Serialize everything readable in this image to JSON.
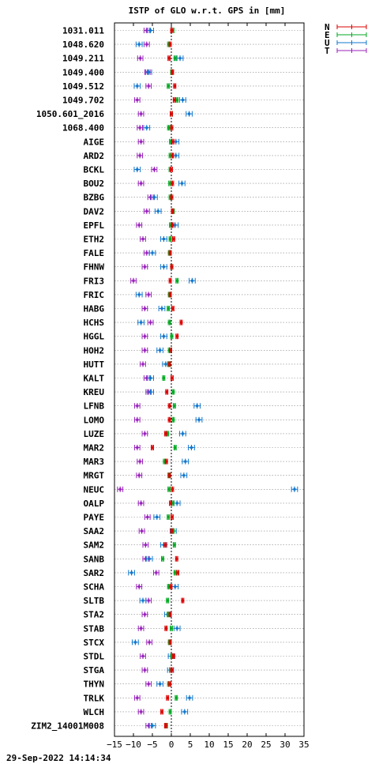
{
  "chart_data": {
    "type": "scatter",
    "title": "ISTP of GLO w.r.t. GPS in [mm]",
    "timestamp": "29-Sep-2022 14:14:34",
    "xlim": [
      -15,
      35
    ],
    "xticks": [
      -15,
      -10,
      -5,
      0,
      5,
      10,
      15,
      20,
      25,
      30,
      35
    ],
    "grid": true,
    "legend_position": "top-right, outside plot",
    "series_colors": {
      "N": "#dd0000",
      "E": "#00aa22",
      "U": "#1177cc",
      "T": "#9922bb"
    },
    "series": [
      {
        "name": "N",
        "error": 0.3
      },
      {
        "name": "E",
        "error": 0.3
      },
      {
        "name": "U",
        "error": 0.8
      },
      {
        "name": "T",
        "error": 0.7
      }
    ],
    "stations": [
      {
        "name": "1031.011",
        "N": 0.1,
        "E": 0.4,
        "U": -5.5,
        "T": -6.5
      },
      {
        "name": "1048.620",
        "N": -0.3,
        "E": -0.7,
        "U": -8.5,
        "T": -6.5
      },
      {
        "name": "1049.211",
        "N": -0.6,
        "E": 1.0,
        "U": 2.3,
        "T": -8.2
      },
      {
        "name": "1049.400",
        "N": 0.3,
        "E": 0.1,
        "U": -6.0,
        "T": -6.3
      },
      {
        "name": "1049.512",
        "N": 0.9,
        "E": -0.8,
        "U": -9.0,
        "T": -6.0
      },
      {
        "name": "1049.702",
        "N": 0.8,
        "E": 1.5,
        "U": 3.0,
        "T": -9.0
      },
      {
        "name": "1050.601_2016",
        "N": 0.0,
        "E": 0.0,
        "U": 4.7,
        "T": -8.0
      },
      {
        "name": "1068.400",
        "N": 0.1,
        "E": -0.7,
        "U": -6.5,
        "T": -8.3
      },
      {
        "name": "AIGE",
        "N": 0.4,
        "E": -0.2,
        "U": 1.2,
        "T": -8.0
      },
      {
        "name": "ARD2",
        "N": 0.3,
        "E": -0.3,
        "U": 1.2,
        "T": -8.3
      },
      {
        "name": "BCKL",
        "N": 0.0,
        "E": -0.3,
        "U": -9.0,
        "T": -4.5
      },
      {
        "name": "BOU2",
        "N": 0.3,
        "E": -0.4,
        "U": 2.8,
        "T": -8.0
      },
      {
        "name": "BZBG",
        "N": 0.1,
        "E": -0.3,
        "U": -4.5,
        "T": -5.5
      },
      {
        "name": "DAV2",
        "N": 0.3,
        "E": 0.5,
        "U": -3.5,
        "T": -6.5
      },
      {
        "name": "EPFL",
        "N": 0.3,
        "E": -0.2,
        "U": 1.0,
        "T": -8.5
      },
      {
        "name": "ETH2",
        "N": 0.6,
        "E": -0.3,
        "U": -2.0,
        "T": -7.5
      },
      {
        "name": "FALE",
        "N": -0.3,
        "E": -0.5,
        "U": -5.0,
        "T": -6.5
      },
      {
        "name": "FHNW",
        "N": 0.1,
        "E": 0.1,
        "U": -2.0,
        "T": -7.0
      },
      {
        "name": "FRI3",
        "N": -0.3,
        "E": 1.5,
        "U": 5.5,
        "T": -10.0
      },
      {
        "name": "FRIC",
        "N": -0.3,
        "E": -0.5,
        "U": -8.5,
        "T": -6.0
      },
      {
        "name": "HABG",
        "N": 0.4,
        "E": -0.8,
        "U": -2.5,
        "T": -7.0
      },
      {
        "name": "HCHS",
        "N": 2.6,
        "E": -0.5,
        "U": -8.0,
        "T": -5.5
      },
      {
        "name": "HGGL",
        "N": 1.5,
        "E": 0.1,
        "U": -2.0,
        "T": -7.0
      },
      {
        "name": "HOH2",
        "N": -0.2,
        "E": -0.5,
        "U": -3.0,
        "T": -7.0
      },
      {
        "name": "HUTT",
        "N": -0.5,
        "E": -0.7,
        "U": -1.5,
        "T": -7.5
      },
      {
        "name": "KALT",
        "N": 0.2,
        "E": -2.0,
        "U": -5.5,
        "T": -6.5
      },
      {
        "name": "KREU",
        "N": -1.2,
        "E": 0.5,
        "U": -5.5,
        "T": -6.0
      },
      {
        "name": "LFNB",
        "N": -0.5,
        "E": 0.8,
        "U": 6.8,
        "T": -9.0
      },
      {
        "name": "LOMO",
        "N": -0.5,
        "E": 0.5,
        "U": 7.3,
        "T": -9.0
      },
      {
        "name": "LUZE",
        "N": -1.5,
        "E": -1.0,
        "U": 3.0,
        "T": -7.0
      },
      {
        "name": "MAR2",
        "N": -5.0,
        "E": 1.0,
        "U": 5.3,
        "T": -9.0
      },
      {
        "name": "MAR3",
        "N": -1.3,
        "E": -1.8,
        "U": 3.7,
        "T": -8.3
      },
      {
        "name": "MRGT",
        "N": -0.5,
        "E": -0.6,
        "U": 3.3,
        "T": -8.5
      },
      {
        "name": "NEUC",
        "N": 0.3,
        "E": -0.6,
        "U": 32.5,
        "T": -13.5
      },
      {
        "name": "OALP",
        "N": -0.2,
        "E": 0.4,
        "U": 1.5,
        "T": -8.0
      },
      {
        "name": "PAYE",
        "N": 0.2,
        "E": -0.8,
        "U": -3.8,
        "T": -6.3
      },
      {
        "name": "SAA2",
        "N": 0.1,
        "E": 0.5,
        "U": 0.5,
        "T": -7.8
      },
      {
        "name": "SAM2",
        "N": -1.6,
        "E": 0.8,
        "U": -2.0,
        "T": -6.8
      },
      {
        "name": "SANB",
        "N": 1.4,
        "E": -2.3,
        "U": -5.8,
        "T": -6.8
      },
      {
        "name": "SAR2",
        "N": 1.7,
        "E": 1.0,
        "U": -10.5,
        "T": -4.0
      },
      {
        "name": "SCHA",
        "N": -0.1,
        "E": -0.7,
        "U": 1.0,
        "T": -8.5
      },
      {
        "name": "SLTB",
        "N": 3.0,
        "E": -1.0,
        "U": -7.5,
        "T": -6.0
      },
      {
        "name": "STA2",
        "N": -0.3,
        "E": -0.8,
        "U": -1.0,
        "T": -7.0
      },
      {
        "name": "STAB",
        "N": -1.4,
        "E": 0.0,
        "U": 1.5,
        "T": -8.0
      },
      {
        "name": "STCX",
        "N": -0.3,
        "E": -0.5,
        "U": -9.5,
        "T": -5.8
      },
      {
        "name": "STDL",
        "N": 0.6,
        "E": 0.1,
        "U": 0.0,
        "T": -7.5
      },
      {
        "name": "STGA",
        "N": 0.1,
        "E": -0.2,
        "U": -0.2,
        "T": -7.0
      },
      {
        "name": "THYN",
        "N": -0.4,
        "E": -0.7,
        "U": -3.0,
        "T": -6.0
      },
      {
        "name": "TRLK",
        "N": -1.0,
        "E": 1.3,
        "U": 4.8,
        "T": -9.0
      },
      {
        "name": "WLCH",
        "N": -2.5,
        "E": -0.3,
        "U": 3.5,
        "T": -8.0
      },
      {
        "name": "ZIM2_14001M008",
        "N": -1.5,
        "E": -1.3,
        "U": -5.0,
        "T": -6.0
      }
    ]
  }
}
